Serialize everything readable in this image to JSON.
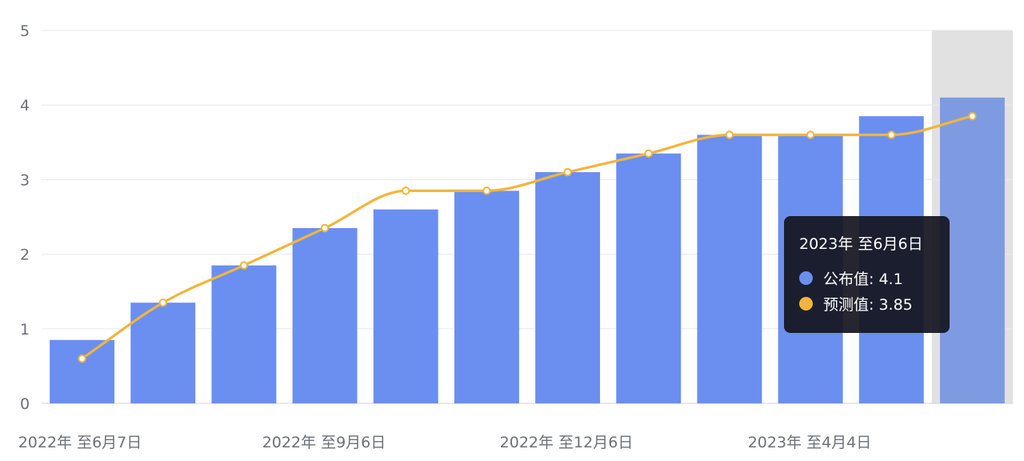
{
  "chart_data": {
    "type": "bar",
    "ylim": [
      0,
      5
    ],
    "yticks": [
      0,
      1,
      2,
      3,
      4,
      5
    ],
    "grid": true,
    "series": [
      {
        "name": "公布值",
        "type": "bar",
        "color": "#6b8ff0",
        "values": [
          0.85,
          1.35,
          1.85,
          2.35,
          2.6,
          2.85,
          3.1,
          3.35,
          3.6,
          3.6,
          3.85,
          4.1
        ]
      },
      {
        "name": "预测值",
        "type": "line",
        "smooth": true,
        "color": "#f2b53b",
        "values": [
          0.6,
          1.35,
          1.85,
          2.35,
          2.85,
          2.85,
          3.1,
          3.35,
          3.6,
          3.6,
          3.6,
          3.85
        ]
      }
    ],
    "x_tick_labels": [
      "2022年 至6月7日",
      "2022年 至9月6日",
      "2022年 至12月6日",
      "2023年 至4月4日"
    ],
    "highlight_index": 11
  },
  "tooltip": {
    "title": "2023年 至6月6日",
    "rows": [
      {
        "label": "公布值: 4.1",
        "color": "#6b8ff0"
      },
      {
        "label": "预测值: 3.85",
        "color": "#f2b53b"
      }
    ]
  }
}
